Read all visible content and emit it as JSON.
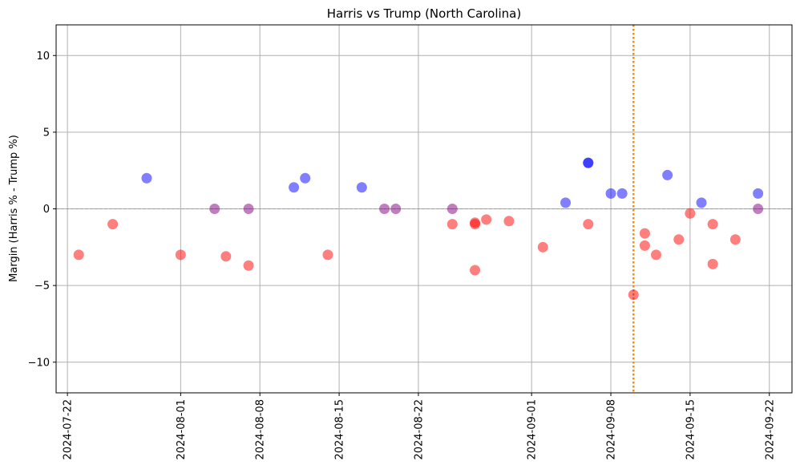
{
  "chart_data": {
    "type": "scatter",
    "title": "Harris vs Trump (North Carolina)",
    "xlabel": "",
    "ylabel": "Margin (Harris % - Trump %)",
    "x_type": "date",
    "xlim": [
      "2024-07-21",
      "2024-09-24"
    ],
    "ylim": [
      -12,
      12
    ],
    "x_ticks": [
      "2024-07-22",
      "2024-08-01",
      "2024-08-08",
      "2024-08-15",
      "2024-08-22",
      "2024-09-01",
      "2024-09-08",
      "2024-09-15",
      "2024-09-22"
    ],
    "y_ticks": [
      -10,
      -5,
      0,
      5,
      10
    ],
    "y_tick_labels": [
      "−10",
      "−5",
      "0",
      "5",
      "10"
    ],
    "grid": true,
    "zero_line": {
      "y": 0,
      "style": "dashed",
      "color": "#999999"
    },
    "reference_line": {
      "x": "2024-09-10",
      "style": "dotted",
      "color": "#ff8c00"
    },
    "colors": {
      "harris_lead": "#0000ff",
      "trump_lead": "#ff0000",
      "tie": "#800080"
    },
    "points": [
      {
        "x": "2024-07-23",
        "y": -3,
        "group": "trump_lead"
      },
      {
        "x": "2024-07-26",
        "y": -1,
        "group": "trump_lead"
      },
      {
        "x": "2024-07-29",
        "y": 2,
        "group": "harris_lead"
      },
      {
        "x": "2024-08-01",
        "y": -3,
        "group": "trump_lead"
      },
      {
        "x": "2024-08-04",
        "y": 0,
        "group": "tie"
      },
      {
        "x": "2024-08-05",
        "y": -3.1,
        "group": "trump_lead"
      },
      {
        "x": "2024-08-07",
        "y": 0,
        "group": "tie"
      },
      {
        "x": "2024-08-07",
        "y": -3.7,
        "group": "trump_lead"
      },
      {
        "x": "2024-08-11",
        "y": 1.4,
        "group": "harris_lead"
      },
      {
        "x": "2024-08-12",
        "y": 2,
        "group": "harris_lead"
      },
      {
        "x": "2024-08-14",
        "y": -3,
        "group": "trump_lead"
      },
      {
        "x": "2024-08-17",
        "y": 1.4,
        "group": "harris_lead"
      },
      {
        "x": "2024-08-19",
        "y": 0,
        "group": "tie"
      },
      {
        "x": "2024-08-20",
        "y": 0,
        "group": "tie"
      },
      {
        "x": "2024-08-25",
        "y": 0,
        "group": "tie"
      },
      {
        "x": "2024-08-25",
        "y": -1,
        "group": "trump_lead"
      },
      {
        "x": "2024-08-27",
        "y": -0.9,
        "group": "trump_lead"
      },
      {
        "x": "2024-08-27",
        "y": -1,
        "group": "trump_lead"
      },
      {
        "x": "2024-08-27",
        "y": -4,
        "group": "trump_lead"
      },
      {
        "x": "2024-08-28",
        "y": -0.7,
        "group": "trump_lead"
      },
      {
        "x": "2024-08-30",
        "y": -0.8,
        "group": "trump_lead"
      },
      {
        "x": "2024-09-02",
        "y": -2.5,
        "group": "trump_lead"
      },
      {
        "x": "2024-09-04",
        "y": 0.4,
        "group": "harris_lead"
      },
      {
        "x": "2024-09-06",
        "y": 3,
        "group": "harris_lead"
      },
      {
        "x": "2024-09-06",
        "y": -1,
        "group": "trump_lead"
      },
      {
        "x": "2024-09-06",
        "y": 3,
        "group": "harris_lead"
      },
      {
        "x": "2024-09-08",
        "y": 1,
        "group": "harris_lead"
      },
      {
        "x": "2024-09-09",
        "y": 1,
        "group": "harris_lead"
      },
      {
        "x": "2024-09-10",
        "y": -5.6,
        "group": "trump_lead"
      },
      {
        "x": "2024-09-11",
        "y": -1.6,
        "group": "trump_lead"
      },
      {
        "x": "2024-09-11",
        "y": -2.4,
        "group": "trump_lead"
      },
      {
        "x": "2024-09-12",
        "y": -3,
        "group": "trump_lead"
      },
      {
        "x": "2024-09-13",
        "y": 2.2,
        "group": "harris_lead"
      },
      {
        "x": "2024-09-14",
        "y": -2,
        "group": "trump_lead"
      },
      {
        "x": "2024-09-15",
        "y": -0.3,
        "group": "trump_lead"
      },
      {
        "x": "2024-09-16",
        "y": 0.4,
        "group": "harris_lead"
      },
      {
        "x": "2024-09-17",
        "y": -3.6,
        "group": "trump_lead"
      },
      {
        "x": "2024-09-17",
        "y": -1,
        "group": "trump_lead"
      },
      {
        "x": "2024-09-19",
        "y": -2,
        "group": "trump_lead"
      },
      {
        "x": "2024-09-21",
        "y": 1,
        "group": "harris_lead"
      },
      {
        "x": "2024-09-21",
        "y": 0,
        "group": "tie"
      }
    ]
  }
}
